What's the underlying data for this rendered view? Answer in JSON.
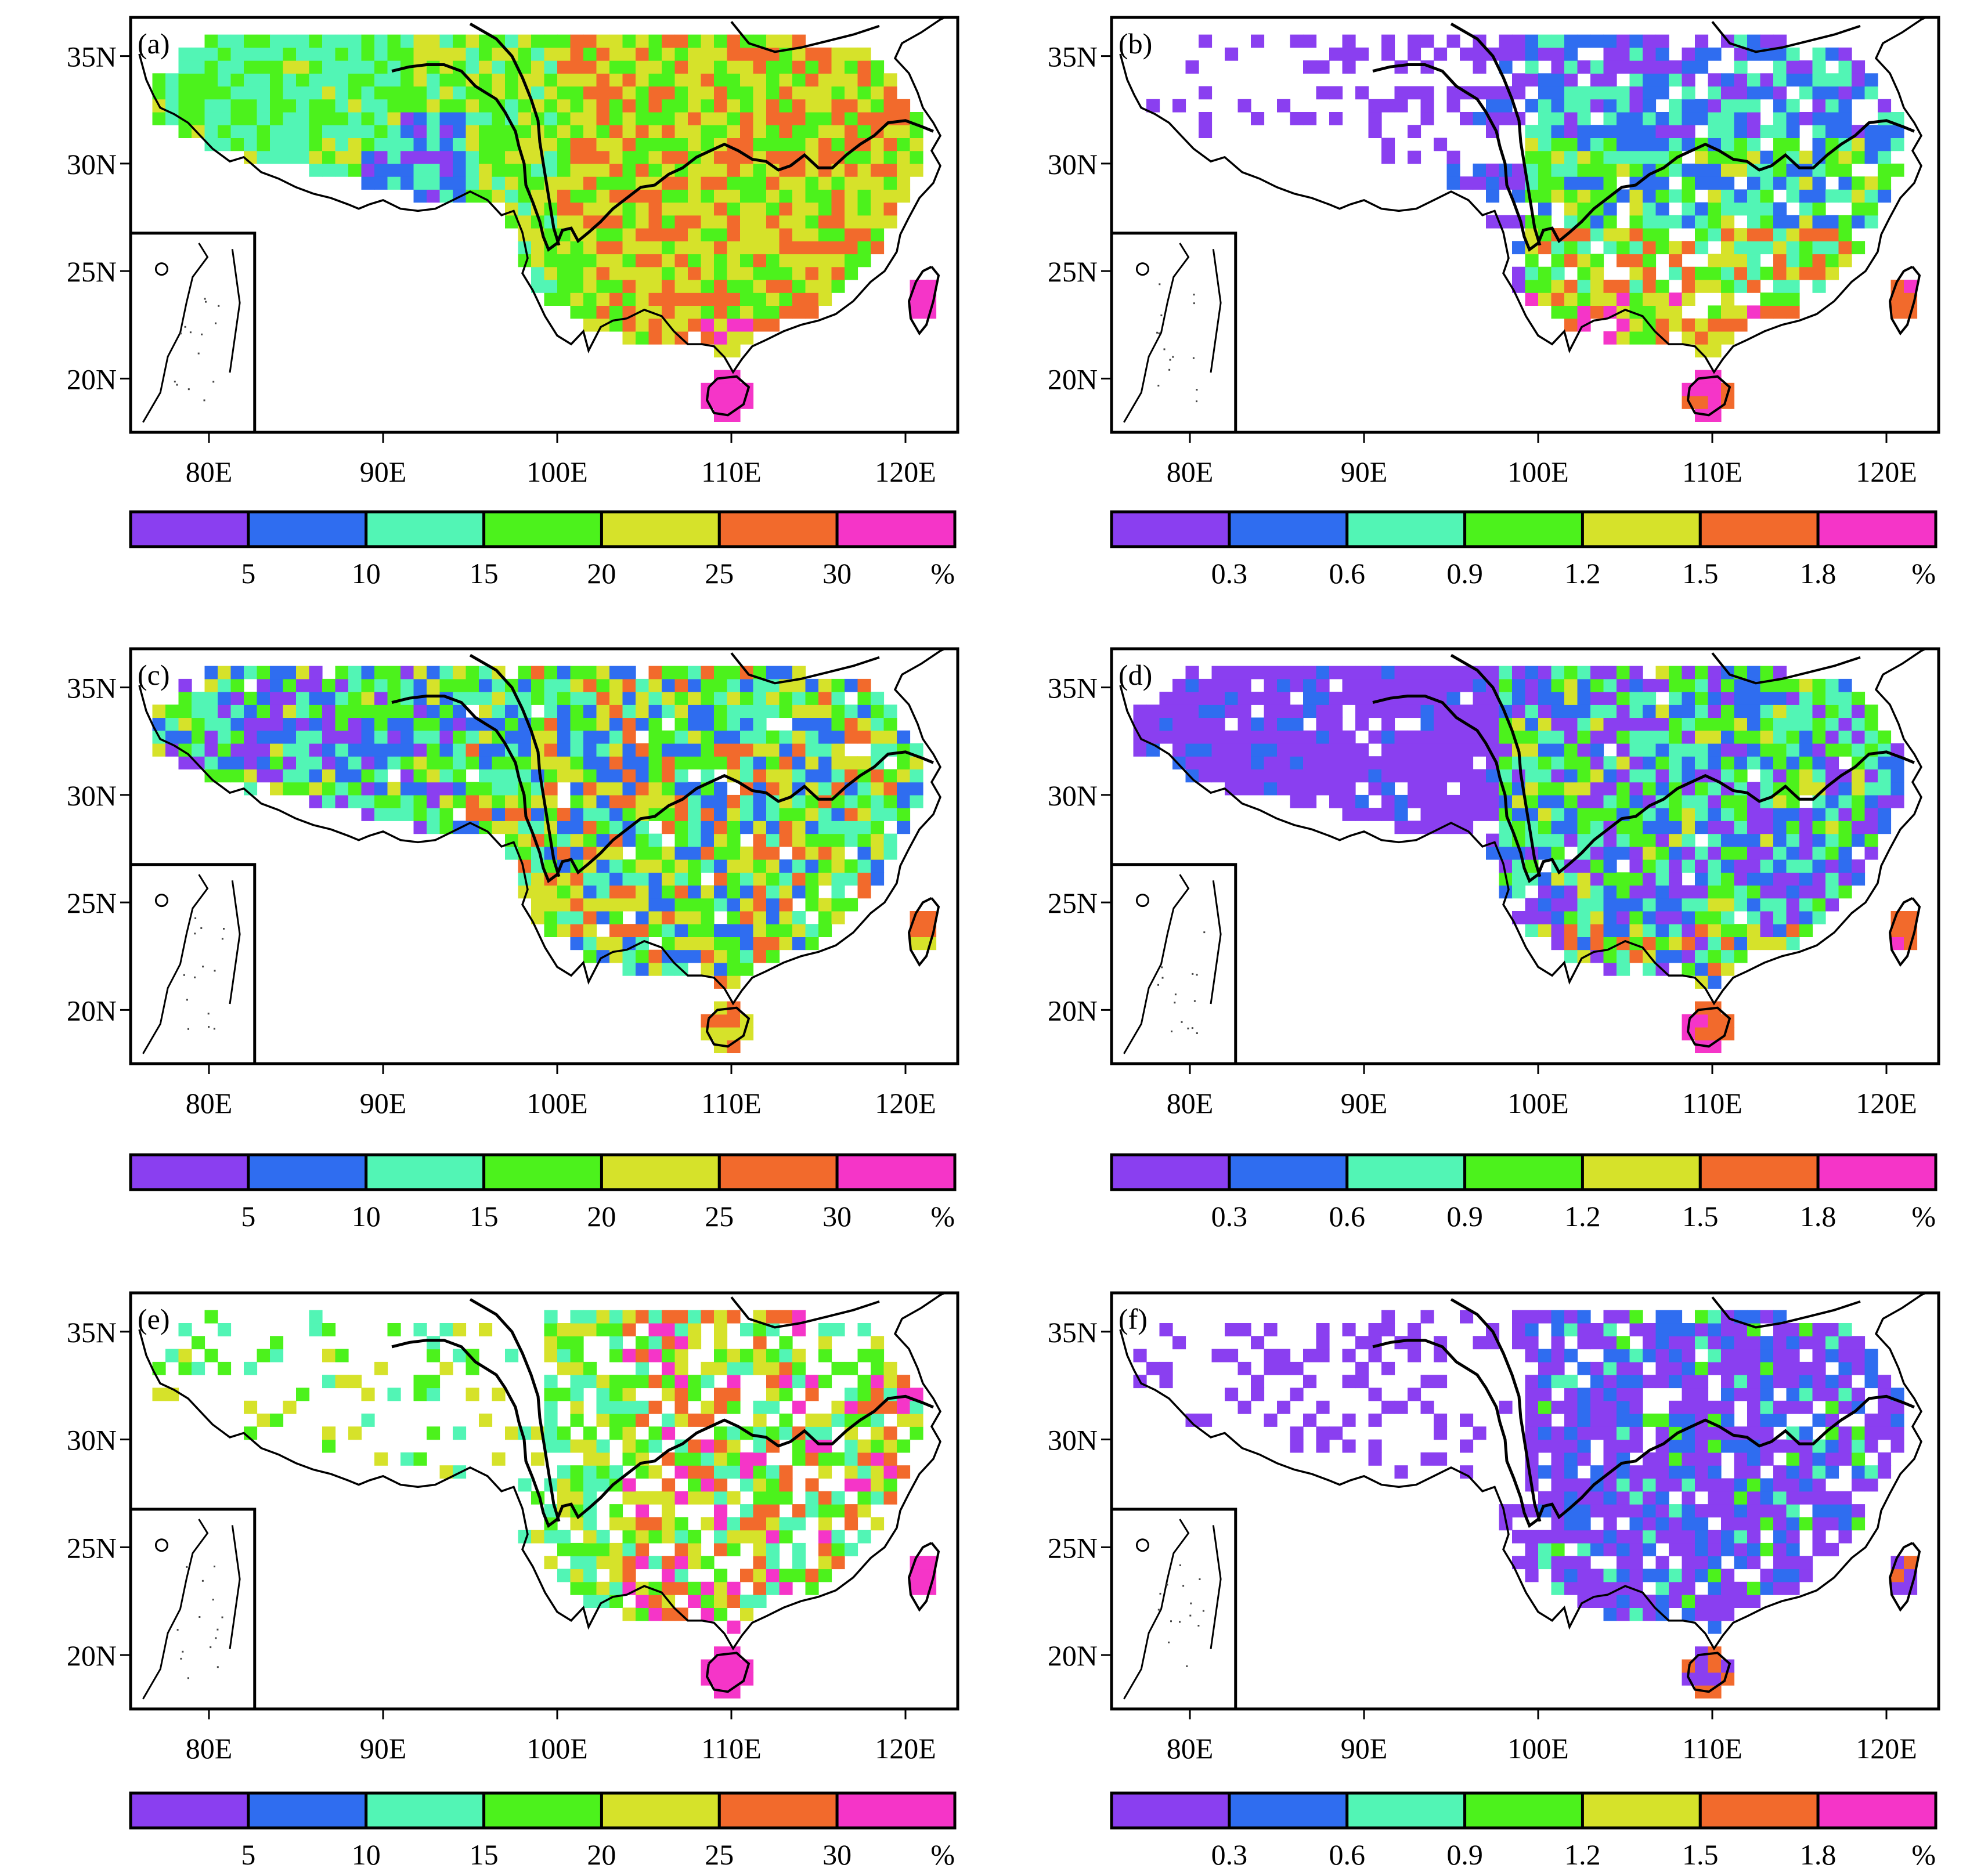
{
  "figure": {
    "lat_ticks": [
      {
        "value": 35,
        "label": "35N"
      },
      {
        "value": 30,
        "label": "30N"
      },
      {
        "value": 25,
        "label": "25N"
      },
      {
        "value": 20,
        "label": "20N"
      }
    ],
    "lon_ticks": [
      {
        "value": 80,
        "label": "80E"
      },
      {
        "value": 90,
        "label": "90E"
      },
      {
        "value": 100,
        "label": "100E"
      },
      {
        "value": 110,
        "label": "110E"
      },
      {
        "value": 120,
        "label": "120E"
      }
    ],
    "map_extent": {
      "lon": [
        75.5,
        123
      ],
      "lat": [
        17.5,
        36.8
      ]
    },
    "palette": [
      "#8a3ff0",
      "#2f6df0",
      "#52f5b5",
      "#4cf21c",
      "#d6e22a",
      "#f26a2c",
      "#f535c8"
    ],
    "legend_a": {
      "ticks": [
        "5",
        "10",
        "15",
        "20",
        "25",
        "30"
      ],
      "unit": "%"
    },
    "legend_b": {
      "ticks": [
        "0.3",
        "0.6",
        "0.9",
        "1.2",
        "1.5",
        "1.8"
      ],
      "unit": "%"
    }
  },
  "chart_data": [
    {
      "type": "heatmap",
      "panel_label": "(a)",
      "colorbar": "legend_a"
    },
    {
      "type": "heatmap",
      "panel_label": "(b)",
      "colorbar": "legend_b"
    },
    {
      "type": "heatmap",
      "panel_label": "(c)",
      "colorbar": "legend_a"
    },
    {
      "type": "heatmap",
      "panel_label": "(d)",
      "colorbar": "legend_b"
    },
    {
      "type": "heatmap",
      "panel_label": "(e)",
      "colorbar": "legend_a"
    },
    {
      "type": "heatmap",
      "panel_label": "(f)",
      "colorbar": "legend_b"
    }
  ]
}
